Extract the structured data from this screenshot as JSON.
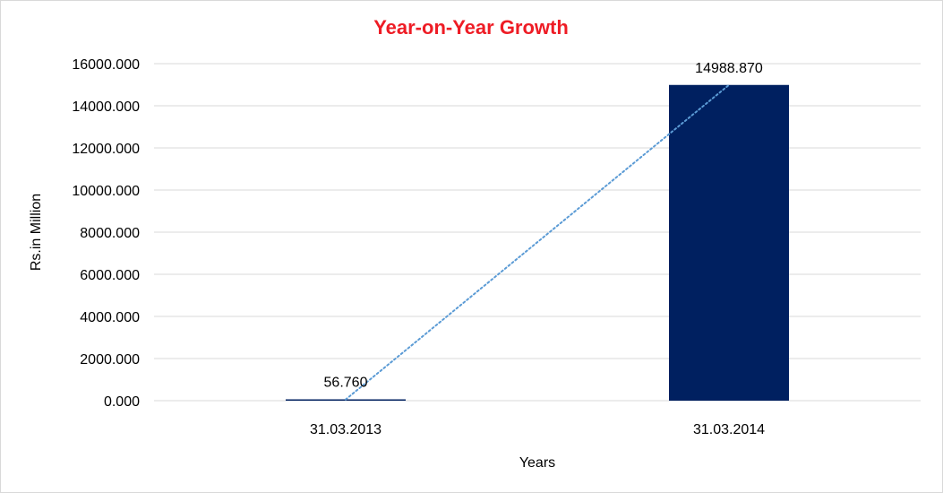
{
  "chart_data": {
    "type": "bar",
    "title": "Year-on-Year Growth",
    "xlabel": "Years",
    "ylabel": "Rs.in Million",
    "categories": [
      "31.03.2013",
      "31.03.2014"
    ],
    "values": [
      56.76,
      14988.87
    ],
    "data_labels": [
      "56.760",
      "14988.870"
    ],
    "ylim": [
      0,
      16000
    ],
    "yticks": [
      0,
      2000,
      4000,
      6000,
      8000,
      10000,
      12000,
      14000,
      16000
    ],
    "ytick_labels": [
      "0.000",
      "2000.000",
      "4000.000",
      "6000.000",
      "8000.000",
      "10000.000",
      "12000.000",
      "14000.000",
      "16000.000"
    ],
    "trendline": "linear",
    "grid": true,
    "legend": "none"
  },
  "colors": {
    "title": "#ee1c25",
    "bar": "#002060",
    "trendline": "#5b9bd5",
    "gridline": "#d9d9d9"
  }
}
